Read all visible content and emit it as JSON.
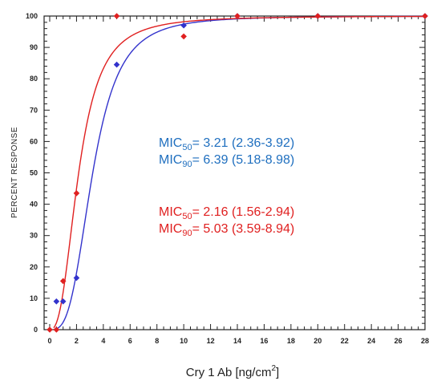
{
  "chart_data": {
    "type": "scatter",
    "xlabel": "Cry 1 Ab [ng/cm",
    "xlabel_sup": "2",
    "xlabel_end": "]",
    "ylabel": "PERCENT RESPONSE",
    "xlim": [
      0,
      28
    ],
    "ylim": [
      0,
      100
    ],
    "x_ticks": [
      0,
      2,
      4,
      6,
      8,
      10,
      12,
      14,
      16,
      18,
      20,
      22,
      24,
      26,
      28
    ],
    "y_ticks": [
      0,
      10,
      20,
      30,
      40,
      50,
      60,
      70,
      80,
      90,
      100
    ],
    "grid": false,
    "series": [
      {
        "color": "#3333cc",
        "points": [
          [
            0.5,
            9
          ],
          [
            1,
            9
          ],
          [
            2,
            16.5
          ],
          [
            5,
            84.5
          ],
          [
            10,
            97
          ],
          [
            14,
            100
          ],
          [
            20,
            100
          ],
          [
            28,
            100
          ]
        ],
        "curve": {
          "mic50": 3.21,
          "mic90": 6.39
        },
        "annotation": {
          "color": "#1f6fbf",
          "lines": [
            {
              "label": "MIC",
              "sub": "50",
              "text": "= 3.21 (2.36-3.92)"
            },
            {
              "label": "MIC",
              "sub": "90",
              "text": "= 6.39 (5.18-8.98)"
            }
          ]
        }
      },
      {
        "color": "#e02020",
        "points": [
          [
            0,
            0
          ],
          [
            0.5,
            0
          ],
          [
            1,
            15.5
          ],
          [
            2,
            43.5
          ],
          [
            5,
            100
          ],
          [
            10,
            93.5
          ],
          [
            14,
            100
          ],
          [
            20,
            100
          ],
          [
            28,
            100
          ]
        ],
        "curve": {
          "mic50": 2.16,
          "mic90": 5.03
        },
        "annotation": {
          "color": "#e02020",
          "lines": [
            {
              "label": "MIC",
              "sub": "50",
              "text": "= 2.16 (1.56-2.94)"
            },
            {
              "label": "MIC",
              "sub": "90",
              "text": "= 5.03 (3.59-8.94)"
            }
          ]
        }
      }
    ]
  }
}
